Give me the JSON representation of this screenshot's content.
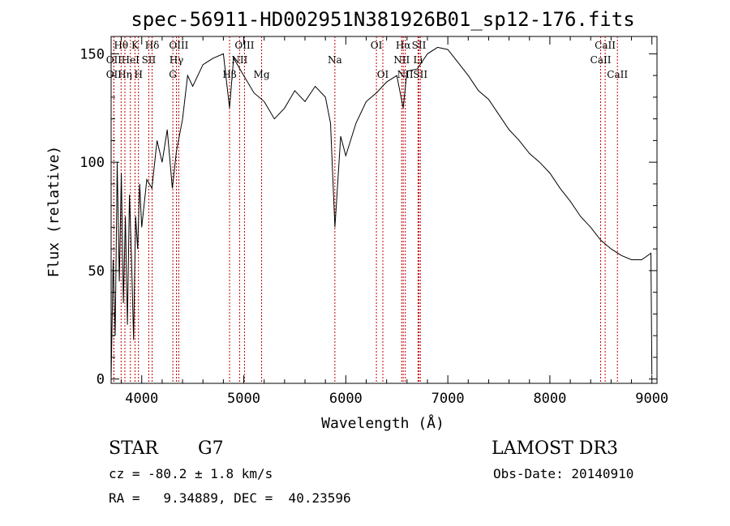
{
  "chart_data": {
    "type": "line",
    "title": "spec-56911-HD002951N381926B01_sp12-176.fits",
    "xlabel": "Wavelength (Å)",
    "ylabel": "Flux (relative)",
    "xlim": [
      3700,
      9050
    ],
    "ylim": [
      -2,
      158
    ],
    "x_ticks": [
      4000,
      5000,
      6000,
      7000,
      8000,
      9000
    ],
    "y_ticks": [
      0,
      50,
      100,
      150
    ],
    "grid": false,
    "series": [
      {
        "x": [
          3700,
          3720,
          3740,
          3760,
          3780,
          3800,
          3820,
          3840,
          3860,
          3880,
          3900,
          3920,
          3940,
          3960,
          3980,
          4000,
          4050,
          4100,
          4150,
          4200,
          4250,
          4300,
          4340,
          4400,
          4450,
          4500,
          4600,
          4700,
          4800,
          4861,
          4900,
          5000,
          5100,
          5200,
          5300,
          5400,
          5500,
          5600,
          5700,
          5800,
          5850,
          5893,
          5950,
          6000,
          6100,
          6200,
          6300,
          6400,
          6500,
          6563,
          6600,
          6700,
          6800,
          6900,
          7000,
          7100,
          7200,
          7300,
          7400,
          7500,
          7600,
          7700,
          7800,
          7900,
          8000,
          8100,
          8200,
          8300,
          8400,
          8500,
          8600,
          8700,
          8800,
          8900,
          8990,
          9000
        ],
        "y": [
          0,
          55,
          20,
          100,
          45,
          95,
          35,
          75,
          25,
          85,
          55,
          18,
          75,
          60,
          90,
          70,
          92,
          88,
          110,
          100,
          115,
          88,
          105,
          120,
          140,
          135,
          145,
          148,
          150,
          125,
          148,
          140,
          132,
          128,
          120,
          125,
          133,
          128,
          135,
          130,
          118,
          70,
          112,
          103,
          118,
          128,
          132,
          137,
          140,
          125,
          142,
          143,
          150,
          153,
          152,
          146,
          140,
          133,
          129,
          122,
          115,
          110,
          104,
          100,
          95,
          88,
          82,
          75,
          70,
          64,
          60,
          57,
          55,
          55,
          58,
          2
        ]
      }
    ]
  },
  "lines": [
    {
      "name": "Hθ",
      "w": 3798,
      "row": 0
    },
    {
      "name": "OII",
      "w": 3727,
      "row": 1
    },
    {
      "name": "OII",
      "w": 3727,
      "row": 2
    },
    {
      "name": "HeI",
      "w": 3889,
      "row": 1
    },
    {
      "name": "Hη",
      "w": 3835,
      "row": 2
    },
    {
      "name": "K",
      "w": 3934,
      "row": 0
    },
    {
      "name": "H",
      "w": 3968,
      "row": 2
    },
    {
      "name": "SII",
      "w": 4069,
      "row": 1
    },
    {
      "name": "Hδ",
      "w": 4102,
      "row": 0
    },
    {
      "name": "OIII",
      "w": 4363,
      "row": 0
    },
    {
      "name": "Hγ",
      "w": 4340,
      "row": 1
    },
    {
      "name": "G",
      "w": 4305,
      "row": 2
    },
    {
      "name": "Hβ",
      "w": 4861,
      "row": 2
    },
    {
      "name": "OIII",
      "w": 5007,
      "row": 0
    },
    {
      "name": "NII",
      "w": 4959,
      "row": 1
    },
    {
      "name": "Mg",
      "w": 5175,
      "row": 2
    },
    {
      "name": "Na",
      "w": 5893,
      "row": 1
    },
    {
      "name": "OI",
      "w": 6300,
      "row": 0
    },
    {
      "name": "OI",
      "w": 6363,
      "row": 2
    },
    {
      "name": "Hα",
      "w": 6563,
      "row": 0
    },
    {
      "name": "NII",
      "w": 6548,
      "row": 1
    },
    {
      "name": "NII",
      "w": 6583,
      "row": 2
    },
    {
      "name": "SII",
      "w": 6717,
      "row": 0
    },
    {
      "name": "Li",
      "w": 6708,
      "row": 1
    },
    {
      "name": "SII",
      "w": 6731,
      "row": 2
    },
    {
      "name": "CaII",
      "w": 8542,
      "row": 0
    },
    {
      "name": "CaII",
      "w": 8498,
      "row": 1
    },
    {
      "name": "CaII",
      "w": 8662,
      "row": 2
    }
  ],
  "footer": {
    "object": "STAR",
    "subclass": "G7",
    "survey": "LAMOST DR3",
    "cz": "cz = -80.2 ± 1.8 km/s",
    "obs_date": "Obs-Date: 20140910",
    "radec": "RA =   9.34889, DEC =  40.23596"
  }
}
